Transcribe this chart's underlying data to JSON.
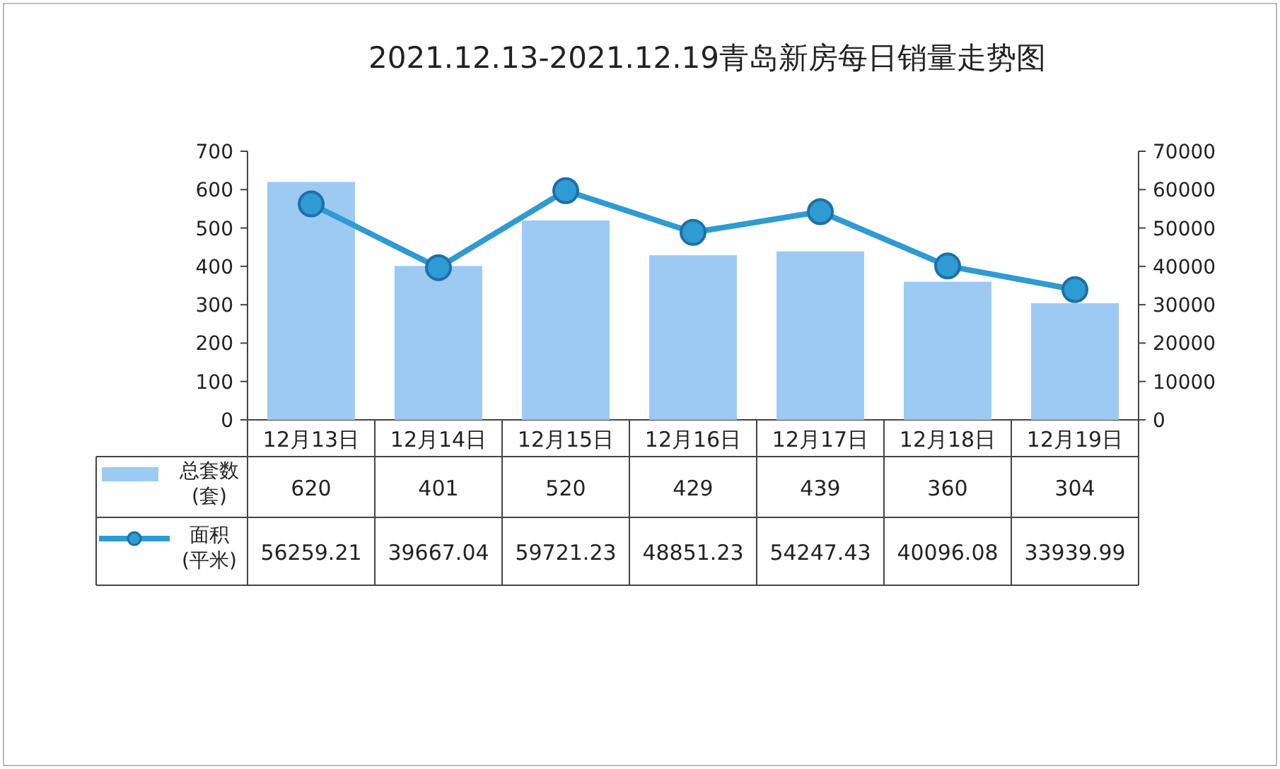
{
  "chart_data": {
    "type": "bar",
    "title": "2021.12.13-2021.12.19青岛新房每日销量走势图",
    "categories": [
      "12月13日",
      "12月14日",
      "12月15日",
      "12月16日",
      "12月17日",
      "12月18日",
      "12月19日"
    ],
    "series": [
      {
        "name": "总套数 (套)",
        "color": "#9dcaf3",
        "values": [
          620,
          401,
          520,
          429,
          439,
          360,
          304
        ]
      },
      {
        "name": "面积 (平米)",
        "type": "line",
        "axis": "y2",
        "color": "#2e9bd2",
        "values": [
          56259.21,
          39667.04,
          59721.23,
          48851.23,
          54247.43,
          40096.08,
          33939.99
        ]
      }
    ],
    "ylim": [
      0,
      700
    ],
    "yticks": [
      0,
      100,
      200,
      300,
      400,
      500,
      600,
      700
    ],
    "y2lim": [
      0,
      70000
    ],
    "y2ticks": [
      0,
      10000,
      20000,
      30000,
      40000,
      50000,
      60000,
      70000
    ],
    "data_labels": true,
    "legend": "bottom",
    "marker": "circle"
  }
}
